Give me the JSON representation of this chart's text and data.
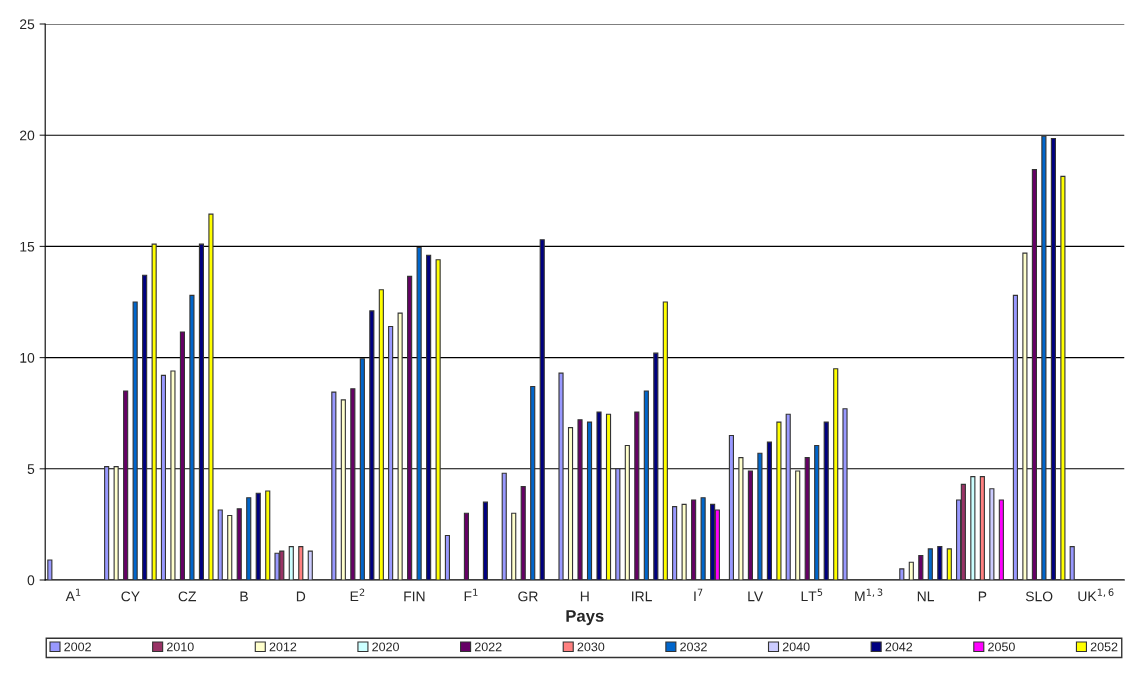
{
  "chart_data": {
    "type": "bar",
    "xlabel": "Pays",
    "categories": [
      "A$^{1}$",
      "CY",
      "CZ",
      "B",
      "D",
      "E$^{2}$",
      "FIN",
      "F$^{1}$",
      "GR",
      "H",
      "IRL",
      "I$^{7}$",
      "LV",
      "LT$^{5}$",
      "M$^{1,3}$",
      "NL",
      "P",
      "SLO",
      "UK$^{1,6}$"
    ],
    "series": [
      {
        "name": "2002",
        "color": "#9999ff",
        "values": [
          0.9,
          5.1,
          9.2,
          3.15,
          1.2,
          8.45,
          11.4,
          2.0,
          4.8,
          9.3,
          5.0,
          3.3,
          6.5,
          7.45,
          7.7,
          0.5,
          3.6,
          12.8,
          1.5
        ]
      },
      {
        "name": "2010",
        "color": "#993366",
        "values": [
          null,
          null,
          null,
          null,
          1.3,
          null,
          null,
          null,
          null,
          null,
          null,
          null,
          null,
          null,
          null,
          null,
          4.3,
          null,
          null
        ]
      },
      {
        "name": "2012",
        "color": "#ffffcc",
        "values": [
          null,
          5.1,
          9.4,
          2.9,
          null,
          8.1,
          12.0,
          null,
          3.0,
          6.85,
          6.05,
          3.4,
          5.5,
          4.9,
          null,
          0.8,
          null,
          14.7,
          null
        ]
      },
      {
        "name": "2020",
        "color": "#ccffff",
        "values": [
          null,
          null,
          null,
          null,
          1.5,
          null,
          null,
          null,
          null,
          null,
          null,
          null,
          null,
          null,
          null,
          null,
          4.65,
          null,
          null
        ]
      },
      {
        "name": "2022",
        "color": "#660066",
        "values": [
          null,
          8.5,
          11.15,
          3.2,
          null,
          8.6,
          13.65,
          3.0,
          4.2,
          7.2,
          7.55,
          3.6,
          4.9,
          5.5,
          null,
          1.1,
          null,
          18.45,
          null
        ]
      },
      {
        "name": "2030",
        "color": "#ff8080",
        "values": [
          null,
          null,
          null,
          null,
          1.5,
          null,
          null,
          null,
          null,
          null,
          null,
          null,
          null,
          null,
          null,
          null,
          4.65,
          null,
          null
        ]
      },
      {
        "name": "2032",
        "color": "#0066cc",
        "values": [
          null,
          12.5,
          12.8,
          3.7,
          null,
          9.95,
          14.95,
          null,
          8.7,
          7.1,
          8.5,
          3.7,
          5.7,
          6.05,
          null,
          1.4,
          null,
          19.95,
          null
        ]
      },
      {
        "name": "2040",
        "color": "#ccccff",
        "values": [
          null,
          null,
          null,
          null,
          1.3,
          null,
          null,
          null,
          null,
          null,
          null,
          null,
          null,
          null,
          null,
          null,
          4.1,
          null,
          null
        ]
      },
      {
        "name": "2042",
        "color": "#000080",
        "values": [
          null,
          13.7,
          15.1,
          3.9,
          null,
          12.1,
          14.6,
          3.5,
          15.3,
          7.55,
          10.2,
          3.4,
          6.2,
          7.1,
          null,
          1.5,
          null,
          19.85,
          null
        ]
      },
      {
        "name": "2050",
        "color": "#ff00ff",
        "values": [
          null,
          null,
          null,
          null,
          null,
          null,
          null,
          null,
          null,
          null,
          null,
          3.15,
          null,
          null,
          null,
          null,
          3.6,
          null,
          null
        ]
      },
      {
        "name": "2052",
        "color": "#ffff00",
        "values": [
          null,
          15.1,
          16.45,
          4.0,
          null,
          13.05,
          14.4,
          null,
          null,
          7.45,
          12.5,
          null,
          7.1,
          9.5,
          null,
          1.4,
          null,
          18.15,
          null
        ]
      }
    ],
    "ylim": [
      0,
      25
    ],
    "yticks": [
      0,
      5,
      10,
      15,
      20,
      25
    ],
    "grid": "y",
    "legend": "bottom"
  }
}
